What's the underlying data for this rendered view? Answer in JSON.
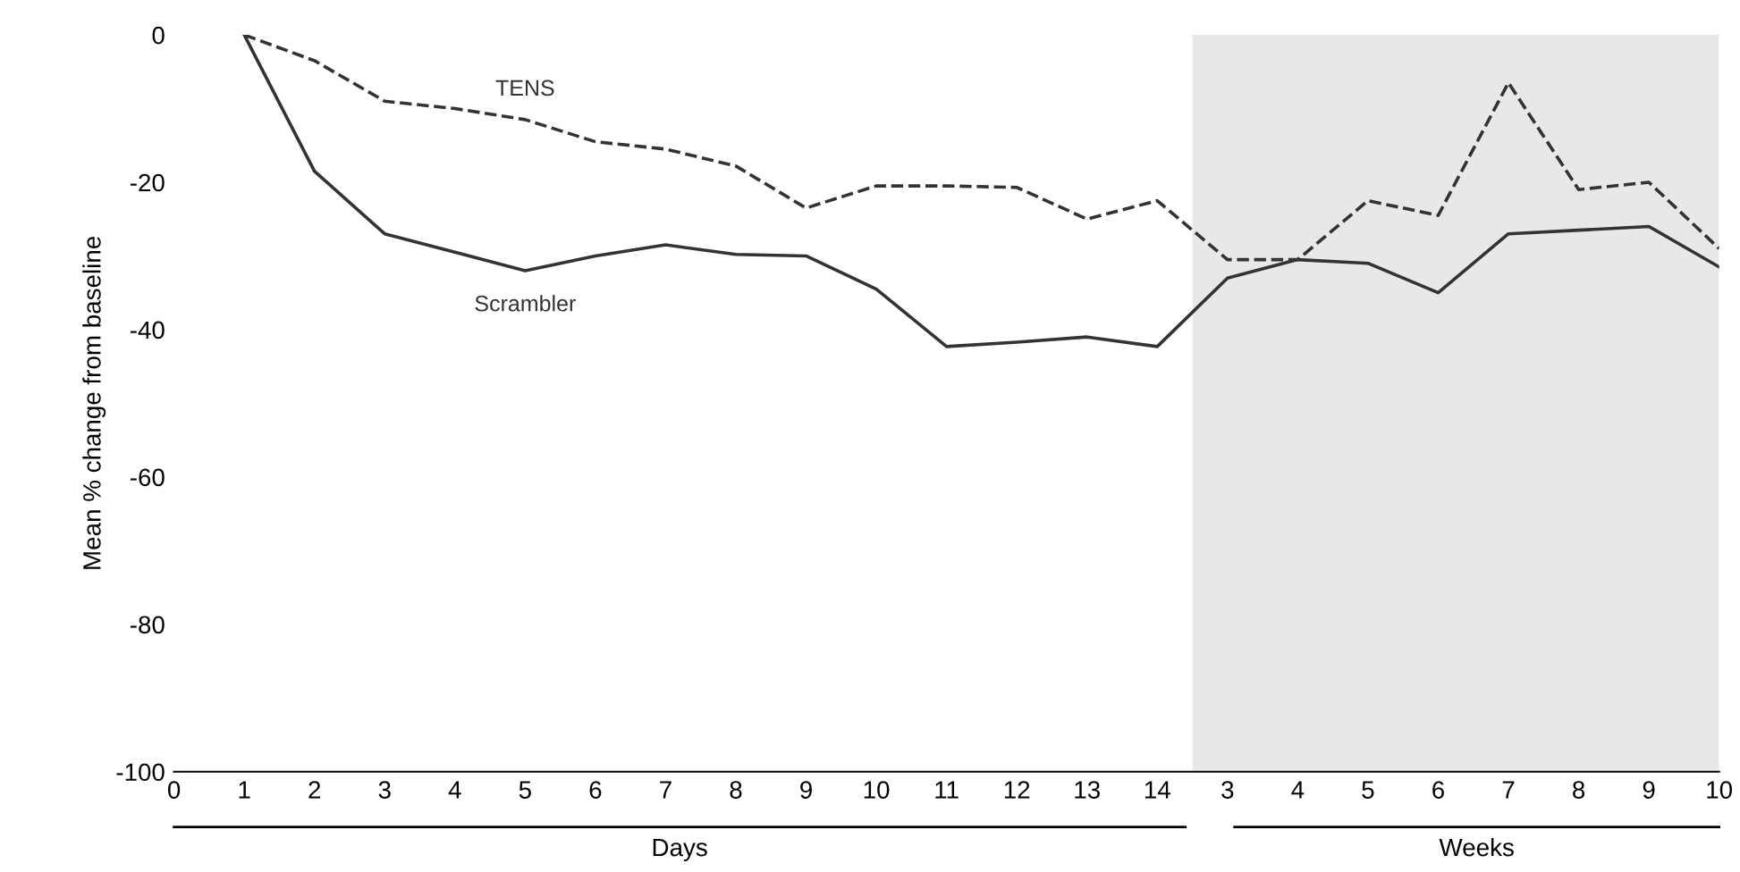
{
  "chart_data": {
    "type": "line",
    "ylabel": "Mean % change from baseline",
    "categories": [
      "0",
      "1",
      "2",
      "3",
      "4",
      "5",
      "6",
      "7",
      "8",
      "9",
      "10",
      "11",
      "12",
      "13",
      "14",
      "3",
      "4",
      "5",
      "6",
      "7",
      "8",
      "9",
      "10"
    ],
    "series": [
      {
        "name": "TENS",
        "color": "#333333",
        "line_style": "dashed",
        "values": [
          null,
          0,
          -3.5,
          -9,
          -10,
          -11.5,
          -14.5,
          -15.5,
          -17.8,
          -23.5,
          -20.5,
          -20.5,
          -20.7,
          -25,
          -22.5,
          -30.5,
          -30.5,
          -22.5,
          -24.5,
          -6.5,
          -21,
          -20,
          -29
        ]
      },
      {
        "name": "Scrambler",
        "color": "#333333",
        "line_style": "solid",
        "values": [
          null,
          0,
          -18.5,
          -27,
          -29.5,
          -32,
          -30,
          -28.5,
          -29.8,
          -30,
          -34.5,
          -42.3,
          -41.7,
          -41,
          -42.3,
          -33,
          -30.5,
          -31,
          -35,
          -27,
          -26.5,
          -26,
          -31.5
        ]
      }
    ],
    "ylim": [
      -100,
      0
    ],
    "yticks": [
      -100,
      -80,
      -60,
      -40,
      -20,
      0
    ],
    "annotations": [
      "Days",
      "Weeks"
    ],
    "grid": false,
    "legend": false,
    "marker": "none"
  }
}
